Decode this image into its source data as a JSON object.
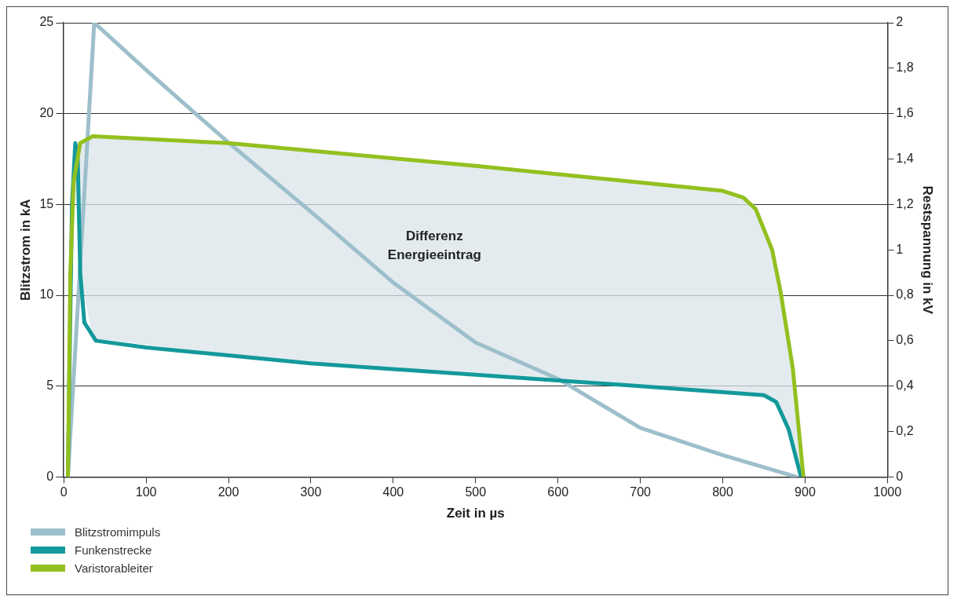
{
  "chart_data": {
    "type": "line",
    "xlabel": "Zeit in µs",
    "ylabel": "Blitzstrom in kA",
    "y2label": "Restspannung in kV",
    "xlim": [
      0,
      1000
    ],
    "xticks": [
      0,
      100,
      200,
      300,
      400,
      500,
      600,
      700,
      800,
      900,
      1000
    ],
    "ylim": [
      0,
      25
    ],
    "yticks": [
      0,
      5,
      10,
      15,
      20,
      25
    ],
    "y2lim": [
      0,
      2
    ],
    "y2ticks": [
      0,
      {
        "value": 0.2,
        "label": "0,2"
      },
      {
        "value": 0.4,
        "label": "0,4"
      },
      {
        "value": 0.6,
        "label": "0,6"
      },
      {
        "value": 0.8,
        "label": "0,8"
      },
      1,
      {
        "value": 1.2,
        "label": "1,2"
      },
      {
        "value": 1.4,
        "label": "1,4"
      },
      {
        "value": 1.6,
        "label": "1,6"
      },
      {
        "value": 1.8,
        "label": "1,8"
      },
      2
    ],
    "grid": "y",
    "legend": "bottom left",
    "marker": "none",
    "line_style": "solid",
    "annotations": [
      "Differenz Energieeintrag"
    ],
    "series": [
      {
        "name": "Blitzstromimpuls",
        "color": "#9dbfcb",
        "x": [
          5,
          37,
          100,
          200,
          300,
          400,
          500,
          600,
          700,
          800,
          890
        ],
        "values": [
          0,
          25,
          22.4,
          18.4,
          14.6,
          10.7,
          7.4,
          5.4,
          2.7,
          1.2,
          0
        ]
      },
      {
        "name": "Funkenstrecke",
        "color": "#13999b",
        "axis": "y2",
        "x": [
          5,
          10,
          14,
          17,
          20,
          25,
          39,
          100,
          300,
          500,
          700,
          850,
          865,
          880,
          895
        ],
        "values": [
          0,
          1.2,
          1.47,
          1.4,
          0.9,
          0.68,
          0.6,
          0.57,
          0.5,
          0.45,
          0.4,
          0.36,
          0.33,
          0.21,
          0
        ]
      },
      {
        "name": "Varistorableiter",
        "color": "#93c01f",
        "axis": "y2",
        "x": [
          5,
          8,
          12,
          20,
          35,
          200,
          500,
          800,
          825,
          840,
          860,
          870,
          885,
          898
        ],
        "values": [
          0,
          0.9,
          1.3,
          1.47,
          1.5,
          1.47,
          1.37,
          1.26,
          1.23,
          1.18,
          1.0,
          0.82,
          0.48,
          0
        ],
        "lower": [
          0,
          0.7,
          1.4,
          0.9,
          0.61,
          0.54,
          0.45,
          0.375,
          0.37,
          0.365,
          0.34,
          0.27,
          0.14,
          0
        ],
        "upper": [
          0,
          0.9,
          1.3,
          1.47,
          1.5,
          1.47,
          1.37,
          1.26,
          1.23,
          1.18,
          1.0,
          0.82,
          0.48,
          0
        ]
      }
    ]
  }
}
